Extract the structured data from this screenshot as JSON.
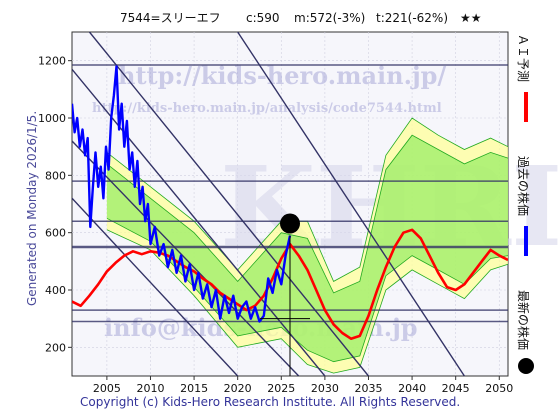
{
  "header": {
    "code_name": "7544=スリーエフ",
    "current": "c:590",
    "m_value": "m:572(-3%)",
    "t_value": "t:221(-62%)",
    "stars": "★★"
  },
  "side_label": "Generated on Monday 2026/1/5.",
  "footer": "Copyright (c) Kids-Hero Research Institute. All Rights Reserved.",
  "watermarks": {
    "url_big": "http://kids-hero.main.jp/",
    "url_small": "http://kids-hero.main.jp/analysis/code7544.html",
    "email": "info@kids-hero.main.jp",
    "logo": "KHRI"
  },
  "legend": {
    "predicted": "ＡＩ予測",
    "past": "過去の株価",
    "latest": "最新の株価"
  },
  "colors": {
    "predicted": "#ff0000",
    "past": "#0000ff",
    "latest": "#000000",
    "band_outer": "#ffff99",
    "band_inner": "#99ee66",
    "band_lines": "#22aa22",
    "trend_lines": "#333366",
    "plot_bg": "#f6f6fb"
  },
  "chart_data": {
    "type": "line",
    "x_ticks": [
      "2005",
      "2010",
      "2015",
      "2020",
      "2025",
      "2030",
      "2035",
      "2040",
      "2045",
      "2050"
    ],
    "y_ticks": [
      "200",
      "400",
      "600",
      "800",
      "1000",
      "1200"
    ],
    "xlim": [
      2001,
      2051
    ],
    "ylim": [
      100,
      1300
    ],
    "grid": true,
    "legend_position": "right",
    "series": [
      {
        "name": "過去の株価",
        "x": [
          2001.0,
          2001.3,
          2001.6,
          2001.9,
          2002.2,
          2002.5,
          2002.8,
          2003.1,
          2003.4,
          2003.7,
          2004.0,
          2004.3,
          2004.6,
          2004.9,
          2005.2,
          2005.5,
          2005.8,
          2006.1,
          2006.4,
          2006.7,
          2007.0,
          2007.3,
          2007.6,
          2007.9,
          2008.2,
          2008.5,
          2008.8,
          2009.1,
          2009.4,
          2009.7,
          2010.0,
          2010.5,
          2011.0,
          2011.5,
          2012.0,
          2012.5,
          2013.0,
          2013.5,
          2014.0,
          2014.5,
          2015.0,
          2015.5,
          2016.0,
          2016.5,
          2017.0,
          2017.5,
          2018.0,
          2018.5,
          2019.0,
          2019.5,
          2020.0,
          2020.5,
          2021.0,
          2021.5,
          2022.0,
          2022.5,
          2023.0,
          2023.5,
          2024.0,
          2024.5,
          2025.0,
          2025.5,
          2026.0
        ],
        "values": [
          1050,
          950,
          1000,
          900,
          960,
          870,
          930,
          620,
          760,
          880,
          760,
          830,
          720,
          900,
          820,
          1000,
          1080,
          1180,
          960,
          1050,
          900,
          990,
          820,
          880,
          760,
          850,
          700,
          760,
          640,
          700,
          560,
          620,
          520,
          560,
          480,
          540,
          460,
          520,
          430,
          490,
          400,
          460,
          370,
          420,
          340,
          400,
          300,
          380,
          320,
          380,
          300,
          340,
          360,
          300,
          340,
          290,
          310,
          440,
          390,
          470,
          420,
          520,
          590
        ]
      },
      {
        "name": "ＡＩ予測",
        "x": [
          2001,
          2002,
          2003,
          2004,
          2005,
          2006,
          2007,
          2008,
          2009,
          2010,
          2011,
          2012,
          2013,
          2014,
          2015,
          2016,
          2017,
          2018,
          2019,
          2020,
          2021,
          2022,
          2023,
          2024,
          2025,
          2026,
          2027,
          2028,
          2029,
          2030,
          2031,
          2032,
          2033,
          2034,
          2035,
          2036,
          2037,
          2038,
          2039,
          2040,
          2041,
          2042,
          2043,
          2044,
          2045,
          2046,
          2047,
          2048,
          2049,
          2050,
          2051
        ],
        "values": [
          360,
          345,
          380,
          420,
          465,
          495,
          520,
          535,
          525,
          535,
          530,
          520,
          500,
          480,
          465,
          440,
          420,
          390,
          370,
          350,
          330,
          345,
          380,
          440,
          510,
          560,
          520,
          470,
          400,
          330,
          280,
          250,
          230,
          240,
          310,
          400,
          480,
          550,
          600,
          610,
          580,
          520,
          460,
          410,
          400,
          420,
          460,
          500,
          540,
          520,
          505
        ]
      }
    ],
    "latest_point": {
      "x": 2026,
      "y": 590
    },
    "horizontal_lines": [
      1185,
      780,
      640,
      550,
      330,
      290
    ],
    "band_outer_upper": {
      "x": [
        2005,
        2010,
        2015,
        2020,
        2025,
        2028,
        2031,
        2034,
        2037,
        2040,
        2043,
        2046,
        2049,
        2051
      ],
      "values": [
        880,
        760,
        640,
        470,
        640,
        640,
        430,
        480,
        870,
        1000,
        940,
        890,
        930,
        900
      ]
    },
    "band_outer_lower": {
      "x": [
        2005,
        2010,
        2015,
        2020,
        2025,
        2028,
        2031,
        2034,
        2037,
        2040,
        2043,
        2046,
        2049,
        2051
      ],
      "values": [
        610,
        540,
        380,
        200,
        230,
        140,
        110,
        130,
        400,
        470,
        420,
        370,
        470,
        490
      ]
    },
    "band_inner_upper": {
      "x": [
        2005,
        2010,
        2015,
        2020,
        2025,
        2028,
        2031,
        2034,
        2037,
        2040,
        2043,
        2046,
        2049,
        2051
      ],
      "values": [
        840,
        720,
        600,
        430,
        600,
        580,
        390,
        430,
        820,
        940,
        890,
        840,
        880,
        860
      ]
    },
    "band_inner_lower": {
      "x": [
        2005,
        2010,
        2015,
        2020,
        2025,
        2028,
        2031,
        2034,
        2037,
        2040,
        2043,
        2046,
        2049,
        2051
      ],
      "values": [
        650,
        570,
        410,
        240,
        270,
        190,
        150,
        170,
        450,
        520,
        470,
        420,
        510,
        520
      ]
    },
    "trend_lines": [
      {
        "x": [
          2003,
          2035
        ],
        "values": [
          1300,
          100
        ]
      },
      {
        "x": [
          2001,
          2030
        ],
        "values": [
          1170,
          100
        ]
      },
      {
        "x": [
          2001,
          2027
        ],
        "values": [
          920,
          100
        ]
      },
      {
        "x": [
          2001,
          2020
        ],
        "values": [
          720,
          100
        ]
      },
      {
        "x": [
          2020,
          2046
        ],
        "values": [
          1300,
          100
        ]
      }
    ]
  }
}
